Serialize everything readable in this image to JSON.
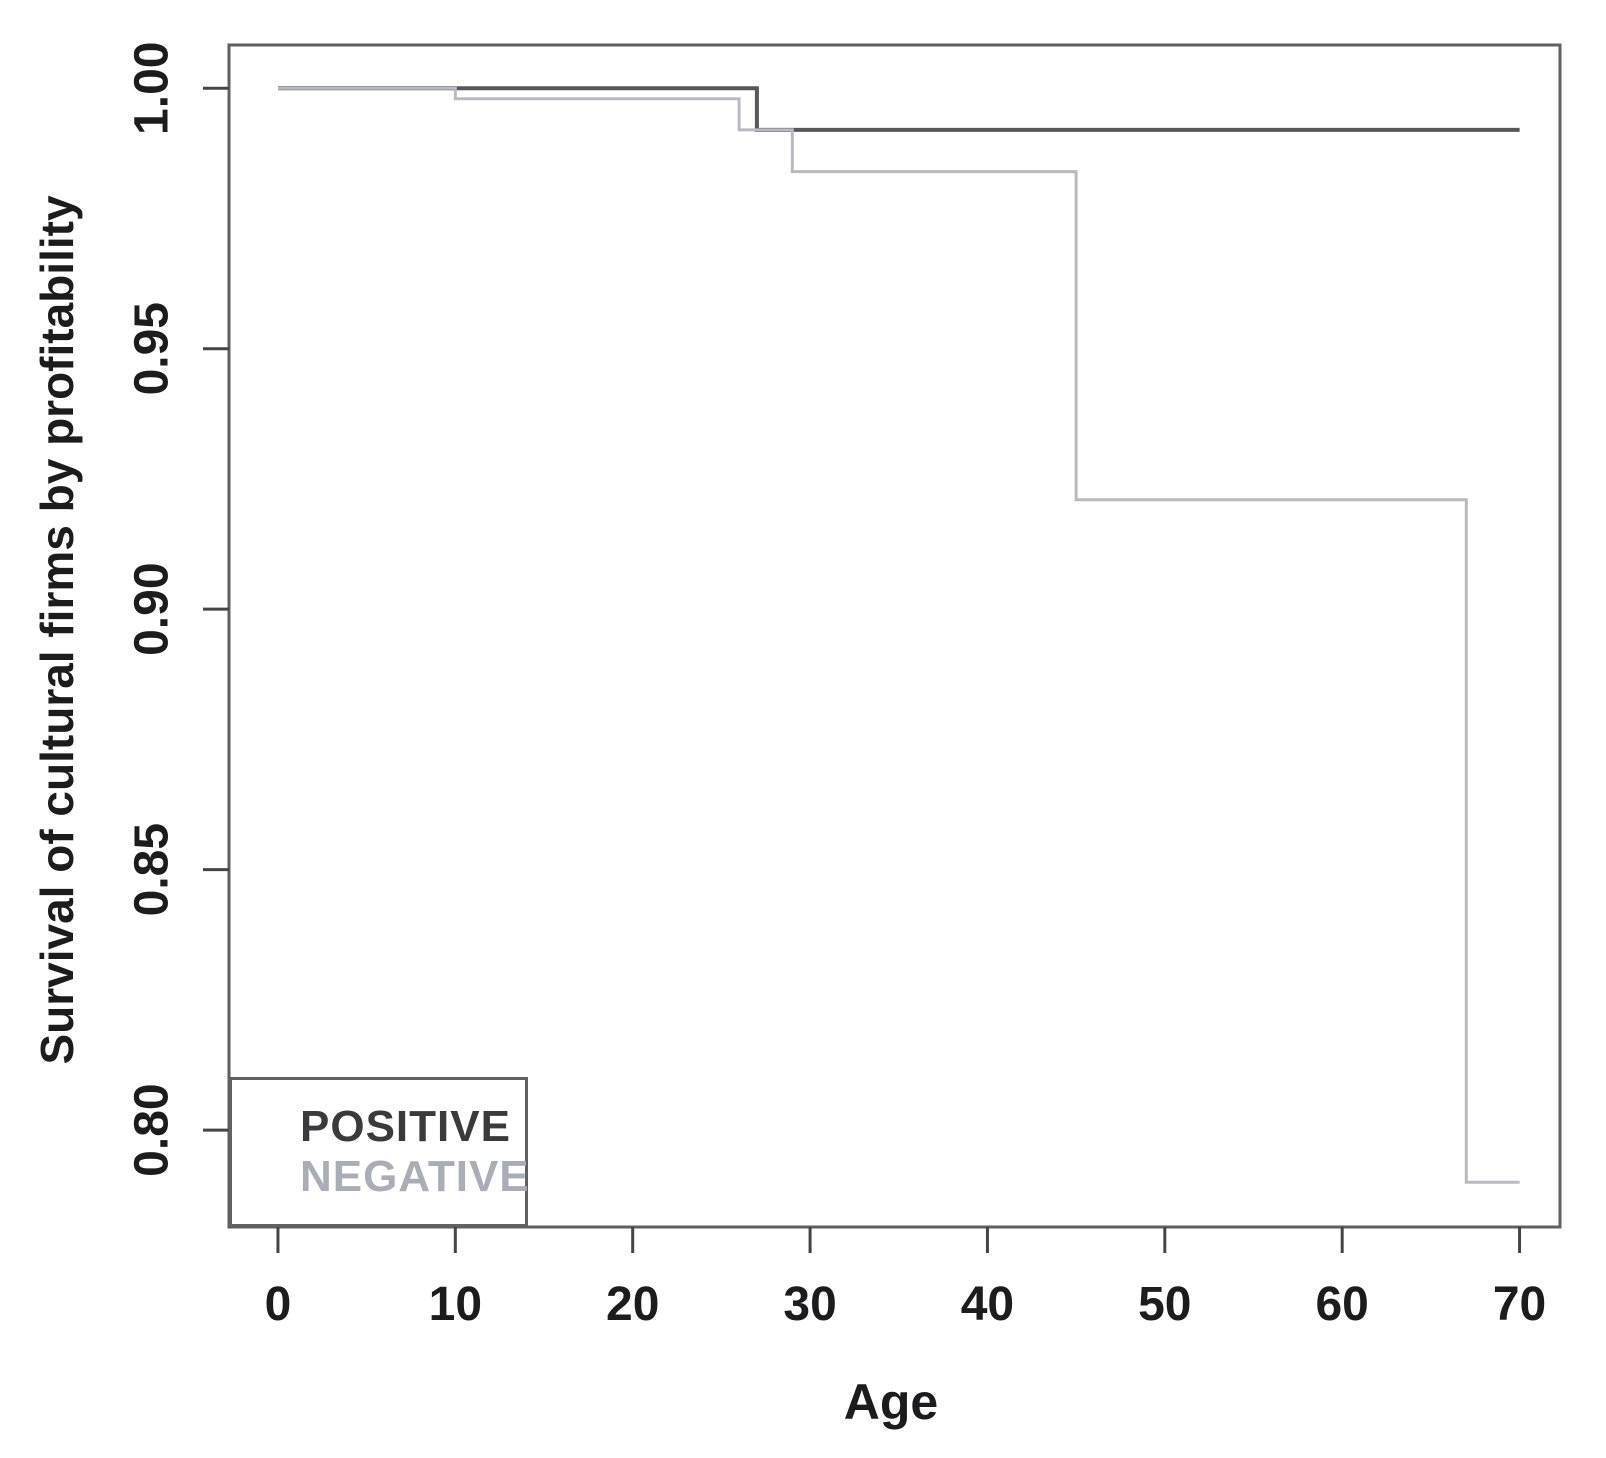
{
  "chart_data": {
    "type": "line",
    "subtype": "kaplan-meier-step",
    "title": "",
    "xlabel": "Age",
    "ylabel": "Survival of cultural firms by profitability",
    "xlim": [
      -2.76,
      72.28
    ],
    "ylim": [
      0.7814,
      1.0083
    ],
    "grid": false,
    "x_ticks": [
      0,
      10,
      20,
      30,
      40,
      50,
      60,
      70
    ],
    "x_tick_labels": [
      "0",
      "10",
      "20",
      "30",
      "40",
      "50",
      "60",
      "70"
    ],
    "y_ticks": [
      1.0,
      0.95,
      0.9,
      0.85,
      0.8
    ],
    "y_tick_labels": [
      "1.00",
      "0.95",
      "0.90",
      "0.85",
      "0.80"
    ],
    "series": [
      {
        "name": "POSITIVE",
        "color": "#57575b",
        "stroke_width": 4,
        "points": [
          [
            0,
            1.0
          ],
          [
            27,
            1.0
          ],
          [
            27,
            0.992
          ],
          [
            70,
            0.992
          ]
        ]
      },
      {
        "name": "NEGATIVE",
        "color": "#b7bbc0",
        "stroke_width": 3,
        "points": [
          [
            0,
            1.0
          ],
          [
            10,
            1.0
          ],
          [
            10,
            0.998
          ],
          [
            26,
            0.998
          ],
          [
            26,
            0.992
          ],
          [
            29,
            0.992
          ],
          [
            29,
            0.984
          ],
          [
            45,
            0.984
          ],
          [
            45,
            0.921
          ],
          [
            67,
            0.921
          ],
          [
            67,
            0.79
          ],
          [
            70,
            0.79
          ]
        ]
      }
    ],
    "legend": {
      "position": "bottom-left",
      "items": [
        {
          "label": "POSITIVE",
          "color": "#3a3a3d"
        },
        {
          "label": "NEGATIVE",
          "color": "#a9aeb6"
        }
      ]
    },
    "frame_color": "#5f5f5f",
    "tick_color": "#454545",
    "tick_label_color": "#1c1c1e"
  }
}
